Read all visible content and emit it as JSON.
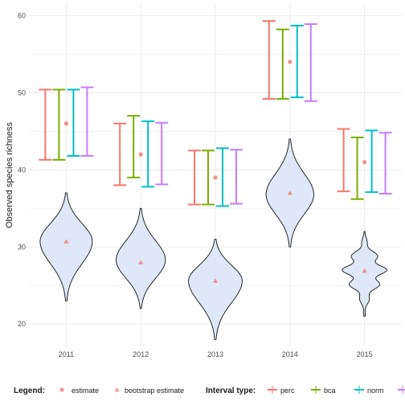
{
  "chart_data": {
    "type": "interval-violin",
    "ylabel": "Observed species richness",
    "xlabel": "",
    "ylim": [
      17,
      61.5
    ],
    "yticks": [
      20,
      30,
      40,
      50,
      60
    ],
    "categories": [
      "2011",
      "2012",
      "2013",
      "2014",
      "2015"
    ],
    "estimate": [
      46,
      42,
      39,
      54,
      41
    ],
    "bootstrap_estimate": [
      30.7,
      28,
      25.6,
      37,
      26.9
    ],
    "intervals": [
      {
        "name": "perc",
        "color": "#F8766D",
        "low": [
          41.3,
          38,
          35.5,
          49.2,
          37.2
        ],
        "high": [
          50.4,
          46,
          42.5,
          59.3,
          45.3
        ]
      },
      {
        "name": "bca",
        "color": "#7CAE00",
        "low": [
          41.3,
          39,
          35.5,
          49.2,
          36.2
        ],
        "high": [
          50.4,
          47,
          42.5,
          58.2,
          44.2
        ]
      },
      {
        "name": "norm",
        "color": "#00BFC4",
        "low": [
          41.8,
          37.8,
          35.3,
          49.4,
          37.1
        ],
        "high": [
          50.4,
          46.3,
          42.8,
          58.7,
          45.1
        ]
      },
      {
        "name": "basic",
        "color": "#C77CFF",
        "low": [
          41.8,
          38.1,
          35.6,
          48.9,
          36.9
        ],
        "high": [
          50.7,
          46.1,
          42.6,
          58.9,
          44.8
        ]
      }
    ],
    "violins": [
      {
        "min": 23,
        "max": 37,
        "peak": 30.7,
        "width": 0.35
      },
      {
        "min": 22,
        "max": 35,
        "peak": 28.3,
        "width": 0.33
      },
      {
        "min": 18,
        "max": 31,
        "peak": 25.6,
        "width": 0.36
      },
      {
        "min": 30,
        "max": 44,
        "peak": 36.8,
        "width": 0.32
      },
      {
        "min": 21,
        "max": 32,
        "peak": 27,
        "width": 0.3,
        "wavy": true
      }
    ],
    "grid": true,
    "legend": {
      "position": "bottom",
      "title": "Legend:",
      "estimate_label": "estimate",
      "bootstrap_label": "bootstrap estimate",
      "interval_title": "Interval type:"
    }
  }
}
